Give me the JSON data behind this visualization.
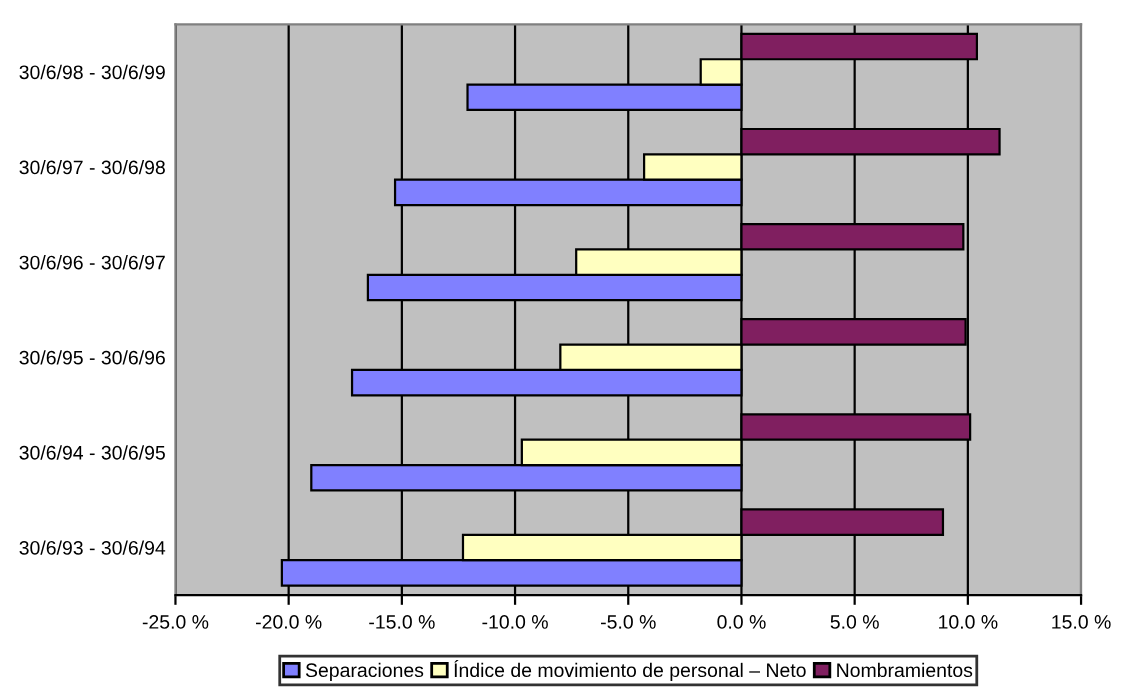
{
  "chart_data": {
    "type": "bar",
    "orientation": "horizontal",
    "categories": [
      "30/6/98 - 30/6/99",
      "30/6/97 - 30/6/98",
      "30/6/96 - 30/6/97",
      "30/6/95 - 30/6/96",
      "30/6/94 - 30/6/95",
      "30/6/93 - 30/6/94"
    ],
    "series": [
      {
        "name": "Separaciones",
        "color": "#8080ff",
        "values": [
          -12.1,
          -15.3,
          -16.5,
          -17.2,
          -19.0,
          -20.3
        ]
      },
      {
        "name": "Índice de movimiento de personal – Neto",
        "color": "#ffffc0",
        "values": [
          -1.8,
          -4.3,
          -7.3,
          -8.0,
          -9.7,
          -12.3
        ]
      },
      {
        "name": "Nombramientos",
        "color": "#801f60",
        "values": [
          10.4,
          11.4,
          9.8,
          9.9,
          10.1,
          8.9
        ]
      }
    ],
    "xlim": [
      -25,
      15
    ],
    "xticks": [
      {
        "value": -25,
        "label": "-25.0 %"
      },
      {
        "value": -20,
        "label": "-20.0 %"
      },
      {
        "value": -15,
        "label": "-15.0 %"
      },
      {
        "value": -10,
        "label": "-10.0 %"
      },
      {
        "value": -5,
        "label": "-5.0 %"
      },
      {
        "value": 0,
        "label": "0.0 %"
      },
      {
        "value": 5,
        "label": "5.0 %"
      },
      {
        "value": 10,
        "label": "10.0 %"
      },
      {
        "value": 15,
        "label": "15.0 %"
      }
    ],
    "grid": "x",
    "legend": "bottom"
  }
}
